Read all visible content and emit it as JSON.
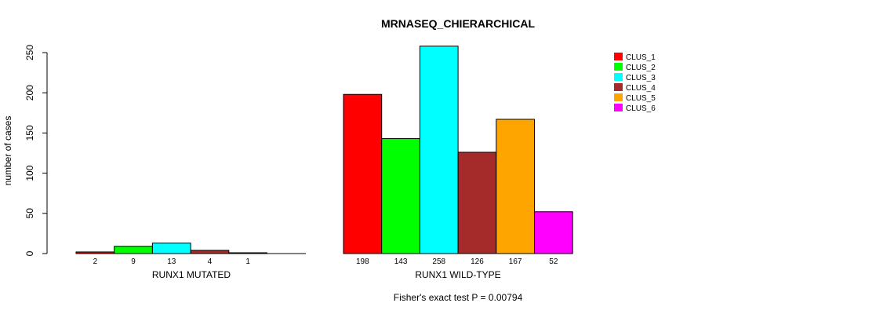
{
  "chart_data": {
    "type": "bar",
    "title": "MRNASEQ_CHIERARCHICAL",
    "ylabel": "number of cases",
    "ylim": [
      0,
      250
    ],
    "yticks": [
      0,
      50,
      100,
      150,
      200,
      250
    ],
    "footer": "Fisher's exact test P = 0.00794",
    "series": [
      {
        "name": "CLUS_1",
        "color": "#ff0000"
      },
      {
        "name": "CLUS_2",
        "color": "#00ff00"
      },
      {
        "name": "CLUS_3",
        "color": "#00ffff"
      },
      {
        "name": "CLUS_4",
        "color": "#a52a2a"
      },
      {
        "name": "CLUS_5",
        "color": "#ffa500"
      },
      {
        "name": "CLUS_6",
        "color": "#ff00ff"
      }
    ],
    "groups": [
      {
        "label": "RUNX1 MUTATED",
        "values": [
          2,
          9,
          13,
          4,
          1,
          0
        ],
        "value_labels": [
          "2",
          "9",
          "13",
          "4",
          "1",
          ""
        ]
      },
      {
        "label": "RUNX1 WILD-TYPE",
        "values": [
          198,
          143,
          258,
          126,
          167,
          52
        ],
        "value_labels": [
          "198",
          "143",
          "258",
          "126",
          "167",
          "52"
        ]
      }
    ],
    "grid": false,
    "legend_position": "top-right"
  }
}
